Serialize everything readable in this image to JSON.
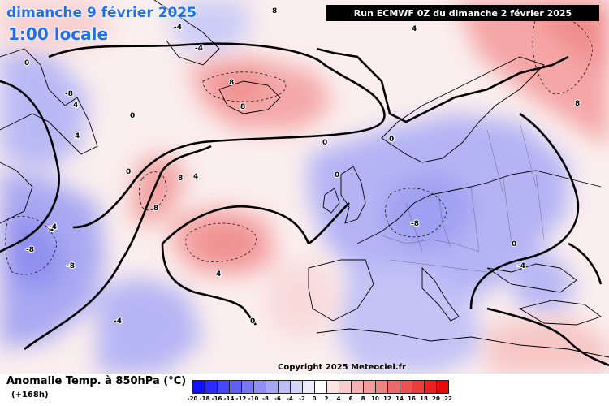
{
  "map": {
    "title_date": "dimanche 9 février 2025",
    "title_time": "1:00 locale",
    "run_info": "Run ECMWF 0Z du dimanche 2 février 2025",
    "copyright": "Copyright 2025 Meteociel.fr"
  },
  "legend": {
    "title": "Anomalie Temp. à 850hPa (°C)",
    "lead_time": "(+168h)",
    "scale_values": [
      "-20",
      "-18",
      "-16",
      "-14",
      "-12",
      "-10",
      "-8",
      "-6",
      "-4",
      "-2",
      "0",
      "2",
      "4",
      "6",
      "8",
      "10",
      "12",
      "14",
      "16",
      "18",
      "20",
      "22"
    ],
    "scale_colors": [
      "#1010ff",
      "#2a2aff",
      "#4646ff",
      "#5f5ff5",
      "#7777f5",
      "#8f8ff5",
      "#a6a6f5",
      "#bdbdf7",
      "#d4d4fa",
      "#ececfd",
      "#ffffff",
      "#fbe4e4",
      "#f8cccc",
      "#f6b2b2",
      "#f39a9a",
      "#f18282",
      "#ee6a6a",
      "#ec5252",
      "#ea3a3a",
      "#e82222",
      "#e60a0a"
    ]
  },
  "contour_labels": [
    "8",
    "8",
    "8",
    "8",
    "8",
    "8",
    "4",
    "4",
    "4",
    "4",
    "4",
    "4",
    "0",
    "0",
    "0",
    "0",
    "0",
    "0",
    "0",
    "0",
    "-4",
    "-4",
    "-4",
    "-4",
    "-4",
    "-8",
    "-8",
    "-8",
    "-8"
  ]
}
